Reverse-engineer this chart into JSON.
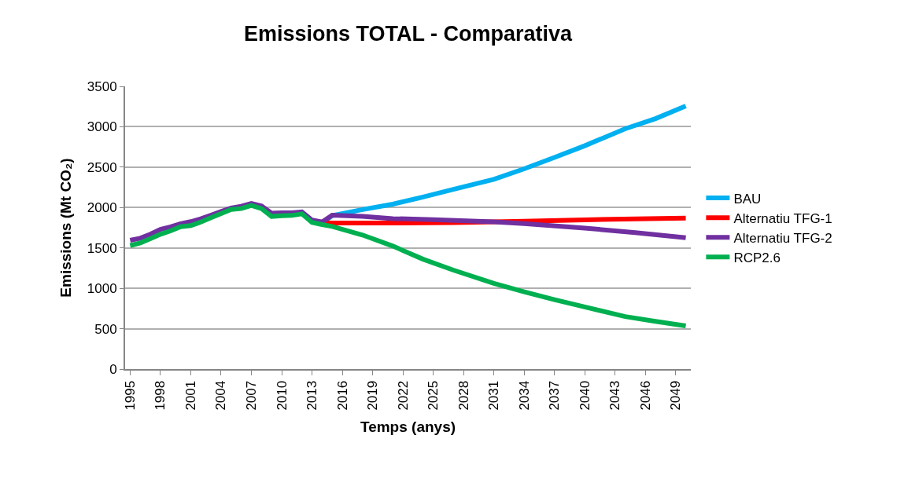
{
  "chart_data": {
    "type": "line",
    "title": "Emissions TOTAL - Comparativa",
    "xlabel": "Temps (anys)",
    "ylabel": "Emissions (Mt CO₂)",
    "xlim": [
      1994.5,
      2050.5
    ],
    "xticks": [
      1995,
      1998,
      2001,
      2004,
      2007,
      2010,
      2013,
      2016,
      2019,
      2022,
      2025,
      2028,
      2031,
      2034,
      2037,
      2040,
      2043,
      2046,
      2049
    ],
    "ylim": [
      0,
      3500
    ],
    "yticks": [
      0,
      500,
      1000,
      1500,
      2000,
      2500,
      3000,
      3500
    ],
    "grid": "y",
    "legend": "right",
    "marker": "none",
    "line_style": "solid",
    "series": [
      {
        "name": "BAU",
        "color": "#00b0f0",
        "x": [
          2014,
          2015,
          2018,
          2021,
          2024,
          2027,
          2031,
          2034,
          2037,
          2040,
          2044,
          2047,
          2050
        ],
        "values": [
          1810,
          1900,
          1975,
          2042,
          2130,
          2225,
          2350,
          2479,
          2620,
          2765,
          2975,
          3100,
          3257
        ]
      },
      {
        "name": "Alternatiu TFG-1",
        "color": "#ff0000",
        "x": [
          2014,
          2015,
          2021,
          2027,
          2031,
          2034,
          2040,
          2045,
          2050
        ],
        "values": [
          1810,
          1808,
          1808,
          1812,
          1822,
          1831,
          1848,
          1860,
          1870
        ]
      },
      {
        "name": "Alternatiu TFG-2",
        "color": "#7030a0",
        "x": [
          1995,
          1996,
          1997,
          1998,
          1999,
          2000,
          2001,
          2002,
          2003,
          2004,
          2005,
          2006,
          2007,
          2008,
          2009,
          2010,
          2011,
          2012,
          2013,
          2014,
          2015,
          2018,
          2021,
          2025,
          2031,
          2034,
          2040,
          2045,
          2050
        ],
        "values": [
          1594,
          1620,
          1670,
          1730,
          1760,
          1800,
          1825,
          1860,
          1905,
          1950,
          1995,
          2015,
          2050,
          2020,
          1930,
          1935,
          1935,
          1945,
          1845,
          1820,
          1905,
          1890,
          1863,
          1850,
          1822,
          1800,
          1745,
          1690,
          1627
        ]
      },
      {
        "name": "RCP2.6",
        "color": "#00b050",
        "x": [
          1995,
          1996,
          1997,
          1998,
          1999,
          2000,
          2001,
          2002,
          2003,
          2004,
          2005,
          2006,
          2007,
          2008,
          2009,
          2010,
          2011,
          2012,
          2013,
          2014,
          2015,
          2018,
          2021,
          2024,
          2027,
          2031,
          2034,
          2037,
          2040,
          2044,
          2047,
          2050
        ],
        "values": [
          1529,
          1562,
          1614,
          1669,
          1711,
          1763,
          1776,
          1821,
          1873,
          1925,
          1977,
          1987,
          2025,
          1987,
          1890,
          1899,
          1902,
          1922,
          1815,
          1789,
          1766,
          1660,
          1523,
          1360,
          1225,
          1060,
          956,
          860,
          770,
          650,
          590,
          535
        ]
      }
    ]
  }
}
